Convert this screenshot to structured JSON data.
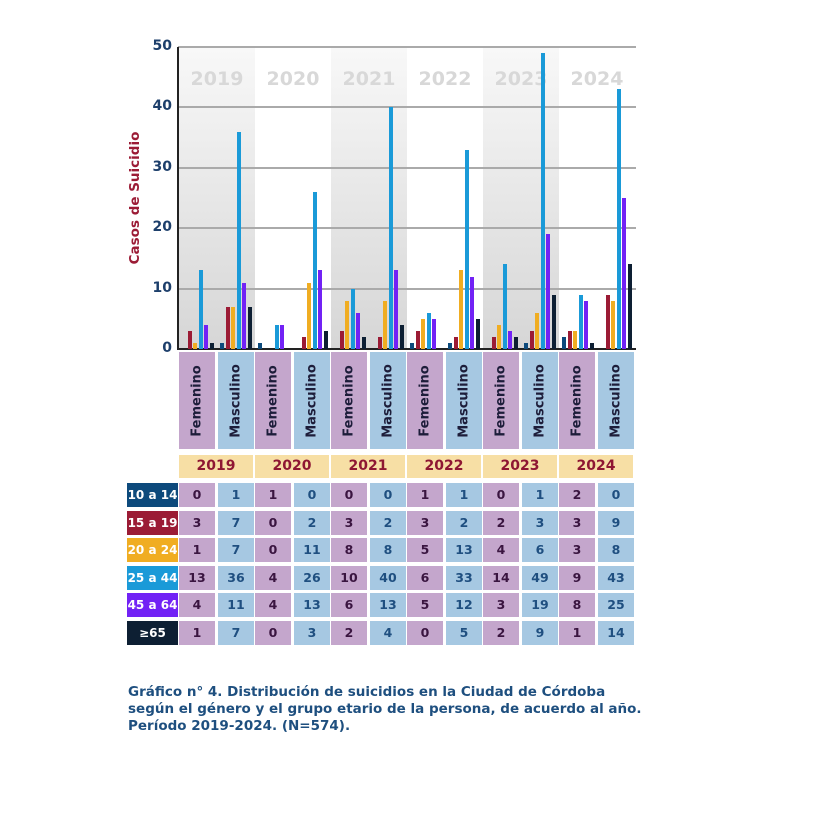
{
  "chart_data": {
    "type": "bar",
    "title": "Gráfico n° 4. Distribución de suicidios en la Ciudad de Córdoba según el género y el grupo etario de la persona, de acuerdo al año. Período 2019-2024. (N=574).",
    "ylabel": "Casos de Suicidio",
    "ylim": [
      0,
      50
    ],
    "yticks": [
      "0",
      "10",
      "20",
      "30",
      "40",
      "50"
    ],
    "years": [
      "2019",
      "2020",
      "2021",
      "2022",
      "2023",
      "2024"
    ],
    "genders": [
      "Femenino",
      "Masculino"
    ],
    "series": [
      {
        "name": "10 a 14",
        "color": "#0d4a7c",
        "values": [
          0,
          1,
          1,
          0,
          0,
          0,
          1,
          1,
          0,
          1,
          2,
          0
        ]
      },
      {
        "name": "15 a 19",
        "color": "#9b1b35",
        "values": [
          3,
          7,
          0,
          2,
          3,
          2,
          3,
          2,
          2,
          3,
          3,
          9
        ]
      },
      {
        "name": "20 a 24",
        "color": "#f0ad22",
        "values": [
          1,
          7,
          0,
          11,
          8,
          8,
          5,
          13,
          4,
          6,
          3,
          8
        ]
      },
      {
        "name": "25 a 44",
        "color": "#1a9ad8",
        "values": [
          13,
          36,
          4,
          26,
          10,
          40,
          6,
          33,
          14,
          49,
          9,
          43
        ]
      },
      {
        "name": "45 a 64",
        "color": "#7222f5",
        "values": [
          4,
          11,
          4,
          13,
          6,
          13,
          5,
          12,
          3,
          19,
          8,
          25
        ]
      },
      {
        "name": "≥65",
        "color": "#0d1f33",
        "values": [
          1,
          7,
          0,
          3,
          2,
          4,
          0,
          5,
          2,
          9,
          1,
          14
        ]
      }
    ]
  },
  "caption": "Gráfico n° 4. Distribución de suicidios en la Ciudad de Córdoba según el género y el grupo etario de la persona, de acuerdo al año. Período 2019-2024. (N=574)."
}
